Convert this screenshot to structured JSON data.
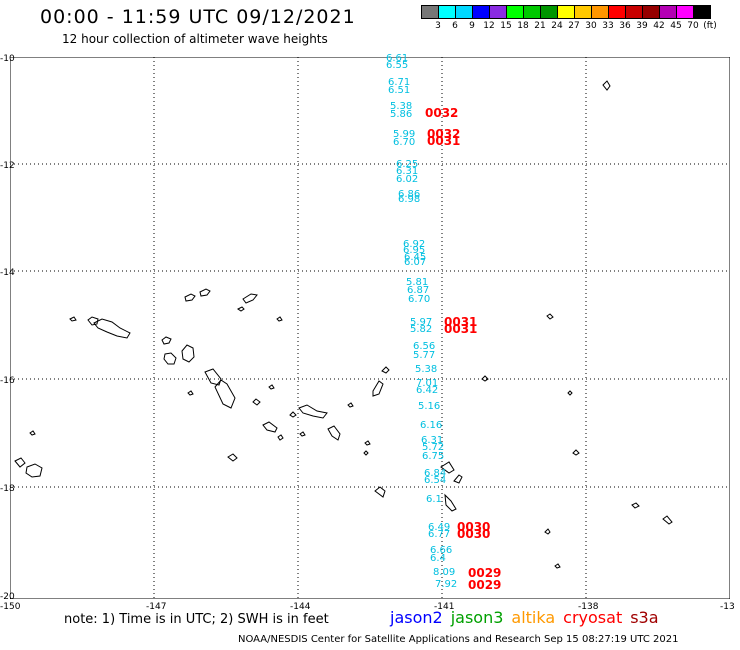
{
  "header": {
    "title": "00:00 - 11:59 UTC 09/12/2021",
    "subtitle": "12 hour collection of altimeter wave heights"
  },
  "legend": {
    "colors": [
      "#777777",
      "#00ffff",
      "#00d8ff",
      "#0000ff",
      "#8a2be2",
      "#00ff00",
      "#00c800",
      "#009600",
      "#ffff00",
      "#ffc800",
      "#ff9600",
      "#ff0000",
      "#c80000",
      "#960000",
      "#b400b4",
      "#ff00ff",
      "#000000"
    ],
    "labels": [
      "3",
      "6",
      "9",
      "12",
      "15",
      "18",
      "21",
      "24",
      "27",
      "30",
      "33",
      "36",
      "39",
      "42",
      "45",
      "70",
      "(ft)"
    ]
  },
  "axes": {
    "y_ticks": [
      "-10",
      "-12",
      "-14",
      "-16",
      "-18",
      "-20"
    ],
    "x_ticks": [
      "-150",
      "-147",
      "-144",
      "-141",
      "-138",
      "-13"
    ]
  },
  "swh_values": [
    "6.61",
    "6.55",
    "6.71",
    "6.51",
    "5.38",
    "5.86",
    "5.99",
    "6.70",
    "6.25",
    "6.31",
    "6.02",
    "6.86",
    "6.98",
    "6.92",
    "6.95",
    "6.45",
    "6.07",
    "5.81",
    "6.87",
    "6.70",
    "5.97",
    "5.82",
    "6.56",
    "5.77",
    "5.38",
    "7.01",
    "6.42",
    "5.16",
    "6.16",
    "6.31",
    "5.72",
    "6.75",
    "6.84",
    "6.54",
    "6.1",
    "6.49",
    "6.77",
    "6.66",
    "6.4",
    "8.09",
    "7.92"
  ],
  "times": [
    "0032",
    "0032",
    "0031",
    "0031",
    "0031",
    "0030",
    "0030",
    "0029",
    "0029"
  ],
  "note": "note: 1) Time is in UTC; 2) SWH is in feet",
  "satellites": [
    {
      "name": "jason2",
      "color": "#0000ff"
    },
    {
      "name": "jason3",
      "color": "#00a000"
    },
    {
      "name": "altika",
      "color": "#ff9900"
    },
    {
      "name": "cryosat",
      "color": "#ff0000"
    },
    {
      "name": "s3a",
      "color": "#a00000"
    }
  ],
  "footer": "NOAA/NESDIS Center for Satellite Applications and Research   Sep 15 08:27:19 UTC 2021"
}
